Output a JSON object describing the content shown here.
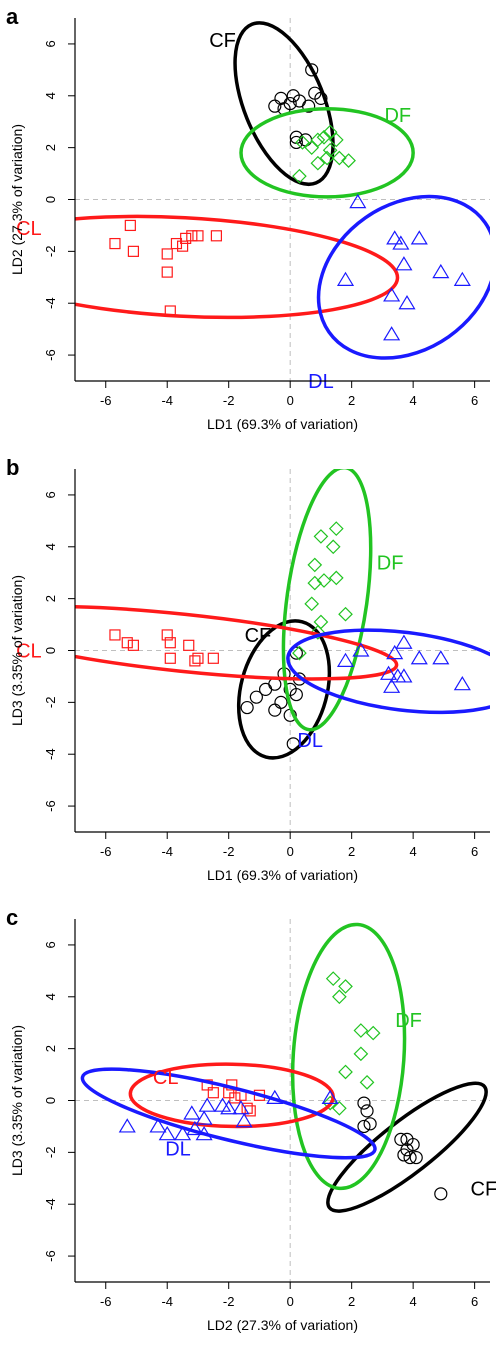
{
  "chart_data": [
    {
      "type": "scatter",
      "panel": "a",
      "xlabel": "LD1 (69.3% of variation)",
      "ylabel": "LD2 (27.3% of variation)",
      "xlim": [
        -7,
        6.5
      ],
      "ylim": [
        -7,
        7
      ],
      "xticks": [
        "-6",
        "-4",
        "-2",
        "0",
        "2",
        "4",
        "6"
      ],
      "yticks": [
        "-6",
        "-4",
        "-2",
        "0",
        "2",
        "4",
        "6"
      ],
      "xtick_values": [
        -6,
        -4,
        -2,
        0,
        2,
        4,
        6
      ],
      "ytick_values": [
        -6,
        -4,
        -2,
        0,
        2,
        4,
        6
      ],
      "groups": [
        {
          "name": "CF",
          "color": "#000000",
          "marker": "circle",
          "points": [
            [
              -0.5,
              3.6
            ],
            [
              -0.3,
              3.9
            ],
            [
              0,
              3.7
            ],
            [
              0.3,
              3.8
            ],
            [
              0.1,
              4.0
            ],
            [
              0.6,
              3.6
            ],
            [
              0.8,
              4.1
            ],
            [
              1.0,
              3.9
            ],
            [
              0.2,
              2.2
            ],
            [
              0.5,
              2.3
            ],
            [
              0.7,
              5.0
            ],
            [
              0.2,
              2.4
            ],
            [
              -0.2,
              3.5
            ]
          ],
          "ellipse": {
            "cx": -0.2,
            "cy": 3.7,
            "rx": 1.3,
            "ry": 3.3,
            "angle": -22
          },
          "label_pos": [
            -4.0,
            4.9
          ]
        },
        {
          "name": "DF",
          "color": "#22c422",
          "marker": "diamond",
          "points": [
            [
              0.4,
              2.2
            ],
            [
              0.7,
              2.0
            ],
            [
              0.9,
              2.3
            ],
            [
              1.1,
              2.4
            ],
            [
              1.3,
              2.6
            ],
            [
              1.5,
              2.3
            ],
            [
              1.2,
              1.6
            ],
            [
              0.9,
              1.4
            ],
            [
              1.6,
              1.6
            ],
            [
              1.9,
              1.5
            ],
            [
              1.3,
              1.9
            ],
            [
              0.3,
              0.9
            ]
          ],
          "ellipse": {
            "cx": 1.2,
            "cy": 1.8,
            "rx": 2.8,
            "ry": 1.7,
            "angle": 0
          },
          "label_pos": [
            4.6,
            2.9
          ]
        },
        {
          "name": "CL",
          "color": "#ff1a1a",
          "marker": "square",
          "points": [
            [
              -5.2,
              -1.0
            ],
            [
              -5.7,
              -1.7
            ],
            [
              -5.1,
              -2.0
            ],
            [
              -4.0,
              -2.1
            ],
            [
              -3.7,
              -1.7
            ],
            [
              -3.4,
              -1.5
            ],
            [
              -3.2,
              -1.4
            ],
            [
              -3.0,
              -1.4
            ],
            [
              -2.4,
              -1.4
            ],
            [
              -4.0,
              -2.8
            ],
            [
              -3.9,
              -4.3
            ],
            [
              -3.5,
              -1.8
            ]
          ],
          "ellipse": {
            "cx": -3.5,
            "cy": -2.6,
            "rx": 7.0,
            "ry": 1.9,
            "angle": 3
          },
          "label_pos": [
            -10.0,
            3.0
          ]
        },
        {
          "name": "DL",
          "color": "#1a1aff",
          "marker": "triangle",
          "points": [
            [
              2.2,
              -0.1
            ],
            [
              3.4,
              -1.5
            ],
            [
              3.6,
              -1.7
            ],
            [
              4.2,
              -1.5
            ],
            [
              3.7,
              -2.5
            ],
            [
              4.9,
              -2.8
            ],
            [
              5.6,
              -3.1
            ],
            [
              1.8,
              -3.1
            ],
            [
              3.3,
              -3.7
            ],
            [
              3.8,
              -4.0
            ],
            [
              3.3,
              -5.2
            ]
          ],
          "ellipse": {
            "cx": 3.8,
            "cy": -3.0,
            "rx": 3.1,
            "ry": 2.8,
            "angle": -35
          },
          "label_pos": [
            -5.6,
            -8.0
          ]
        }
      ]
    },
    {
      "type": "scatter",
      "panel": "b",
      "xlabel": "LD1 (69.3% of variation)",
      "ylabel": "LD3 (3.35% of variation)",
      "xlim": [
        -7,
        6.5
      ],
      "ylim": [
        -7,
        7
      ],
      "xticks": [
        "-6",
        "-4",
        "-2",
        "0",
        "2",
        "4",
        "6"
      ],
      "yticks": [
        "-6",
        "-4",
        "-2",
        "0",
        "2",
        "4",
        "6"
      ],
      "xtick_values": [
        -6,
        -4,
        -2,
        0,
        2,
        4,
        6
      ],
      "ytick_values": [
        -6,
        -4,
        -2,
        0,
        2,
        4,
        6
      ],
      "groups": [
        {
          "name": "CF",
          "color": "#000000",
          "marker": "circle",
          "points": [
            [
              -1.4,
              -2.2
            ],
            [
              -1.1,
              -1.8
            ],
            [
              -0.8,
              -1.5
            ],
            [
              -0.5,
              -1.3
            ],
            [
              -0.3,
              -2.0
            ],
            [
              0.0,
              -1.5
            ],
            [
              0.2,
              -1.7
            ],
            [
              0.0,
              -2.5
            ],
            [
              0.2,
              -0.1
            ],
            [
              0.1,
              -3.6
            ],
            [
              0.3,
              -1.1
            ],
            [
              -0.5,
              -2.3
            ],
            [
              -0.2,
              -0.9
            ]
          ],
          "ellipse": {
            "cx": -0.2,
            "cy": -1.5,
            "rx": 1.4,
            "ry": 2.7,
            "angle": 15
          },
          "label_pos": [
            -1.7,
            4.2
          ]
        },
        {
          "name": "DF",
          "color": "#22c422",
          "marker": "diamond",
          "points": [
            [
              1.0,
              4.4
            ],
            [
              1.5,
              4.7
            ],
            [
              1.4,
              4.0
            ],
            [
              0.8,
              3.3
            ],
            [
              1.5,
              2.8
            ],
            [
              1.1,
              2.7
            ],
            [
              0.8,
              2.6
            ],
            [
              0.7,
              1.8
            ],
            [
              1.0,
              1.1
            ],
            [
              1.8,
              1.4
            ],
            [
              0.9,
              0.7
            ],
            [
              0.3,
              -0.1
            ]
          ],
          "ellipse": {
            "cx": 1.2,
            "cy": 2.0,
            "rx": 1.3,
            "ry": 5.1,
            "angle": 8
          },
          "label_pos": [
            4.1,
            2.8
          ]
        },
        {
          "name": "CL",
          "color": "#ff1a1a",
          "marker": "square",
          "points": [
            [
              -5.7,
              0.6
            ],
            [
              -5.3,
              0.3
            ],
            [
              -5.1,
              0.2
            ],
            [
              -4.0,
              0.6
            ],
            [
              -3.9,
              0.3
            ],
            [
              -3.9,
              -0.3
            ],
            [
              -3.3,
              0.2
            ],
            [
              -3.1,
              -0.4
            ],
            [
              -3.0,
              -0.3
            ],
            [
              -2.5,
              -0.3
            ]
          ],
          "ellipse": {
            "cx": -3.5,
            "cy": 0.3,
            "rx": 7.0,
            "ry": 1.1,
            "angle": 6
          },
          "label_pos": [
            -10.0,
            -0.6
          ]
        },
        {
          "name": "DL",
          "color": "#1a1aff",
          "marker": "triangle",
          "points": [
            [
              1.8,
              -0.4
            ],
            [
              2.3,
              0.0
            ],
            [
              3.2,
              -0.9
            ],
            [
              3.4,
              -0.1
            ],
            [
              3.7,
              0.3
            ],
            [
              3.5,
              -1.0
            ],
            [
              4.2,
              -0.3
            ],
            [
              4.9,
              -0.3
            ],
            [
              5.6,
              -1.3
            ],
            [
              3.3,
              -1.4
            ],
            [
              3.7,
              -1.0
            ]
          ],
          "ellipse": {
            "cx": 3.7,
            "cy": -0.8,
            "rx": 3.8,
            "ry": 1.5,
            "angle": 7
          },
          "label_pos": [
            -6.1,
            -5.3
          ]
        }
      ]
    },
    {
      "type": "scatter",
      "panel": "c",
      "xlabel": "LD2 (27.3% of variation)",
      "ylabel": "LD3 (3.35% of variation)",
      "xlim": [
        -7,
        6.5
      ],
      "ylim": [
        -7,
        7
      ],
      "xticks": [
        "-6",
        "-4",
        "-2",
        "0",
        "2",
        "4",
        "6"
      ],
      "yticks": [
        "-6",
        "-4",
        "-2",
        "0",
        "2",
        "4",
        "6"
      ],
      "xtick_values": [
        -6,
        -4,
        -2,
        0,
        2,
        4,
        6
      ],
      "ytick_values": [
        -6,
        -4,
        -2,
        0,
        2,
        4,
        6
      ],
      "groups": [
        {
          "name": "CF",
          "color": "#000000",
          "marker": "circle",
          "points": [
            [
              2.5,
              -0.4
            ],
            [
              2.6,
              -0.9
            ],
            [
              2.4,
              -1.0
            ],
            [
              3.6,
              -1.5
            ],
            [
              3.8,
              -1.5
            ],
            [
              4.0,
              -1.7
            ],
            [
              3.8,
              -1.9
            ],
            [
              3.9,
              -2.2
            ],
            [
              4.1,
              -2.2
            ],
            [
              4.9,
              -3.6
            ],
            [
              3.7,
              -2.1
            ],
            [
              2.4,
              -0.1
            ]
          ],
          "ellipse": {
            "cx": 3.8,
            "cy": -1.8,
            "rx": 3.2,
            "ry": 1.0,
            "angle": -38
          },
          "label_pos": [
            5.0,
            -3.2
          ]
        },
        {
          "name": "DF",
          "color": "#22c422",
          "marker": "diamond",
          "points": [
            [
              1.4,
              4.7
            ],
            [
              1.8,
              4.4
            ],
            [
              1.6,
              4.0
            ],
            [
              2.3,
              2.7
            ],
            [
              2.7,
              2.6
            ],
            [
              2.3,
              1.8
            ],
            [
              1.8,
              1.1
            ],
            [
              2.5,
              0.7
            ],
            [
              1.3,
              -0.1
            ],
            [
              1.6,
              -0.3
            ]
          ],
          "ellipse": {
            "cx": 1.9,
            "cy": 1.7,
            "rx": 1.8,
            "ry": 5.1,
            "angle": 4
          },
          "label_pos": [
            3.9,
            2.8
          ]
        },
        {
          "name": "CL",
          "color": "#ff1a1a",
          "marker": "square",
          "points": [
            [
              -2.7,
              0.6
            ],
            [
              -2.5,
              0.3
            ],
            [
              -2.0,
              0.3
            ],
            [
              -1.9,
              0.6
            ],
            [
              -1.6,
              0.2
            ],
            [
              -1.4,
              -0.3
            ],
            [
              -1.3,
              -0.4
            ],
            [
              -1.0,
              0.2
            ],
            [
              -1.8,
              0.1
            ]
          ],
          "ellipse": {
            "cx": -1.9,
            "cy": 0.2,
            "rx": 3.3,
            "ry": 1.2,
            "angle": 1
          },
          "label_pos": [
            -4.3,
            1.4
          ]
        },
        {
          "name": "DL",
          "color": "#1a1aff",
          "marker": "triangle",
          "points": [
            [
              -5.3,
              -1.0
            ],
            [
              -4.3,
              -1.0
            ],
            [
              -4.0,
              -1.3
            ],
            [
              -3.5,
              -1.3
            ],
            [
              -3.2,
              -0.5
            ],
            [
              -3.1,
              -1.1
            ],
            [
              -2.8,
              -0.7
            ],
            [
              -2.8,
              -1.3
            ],
            [
              -2.7,
              -0.2
            ],
            [
              -2.2,
              -0.2
            ],
            [
              -2.0,
              -0.3
            ],
            [
              -1.6,
              -0.3
            ],
            [
              -1.5,
              -0.8
            ],
            [
              -0.5,
              0.1
            ],
            [
              1.3,
              0.1
            ]
          ],
          "ellipse": {
            "cx": -2.0,
            "cy": -0.5,
            "rx": 4.9,
            "ry": 1.0,
            "angle": 14
          },
          "label_pos": [
            -3.3,
            -2.7
          ]
        }
      ]
    }
  ]
}
